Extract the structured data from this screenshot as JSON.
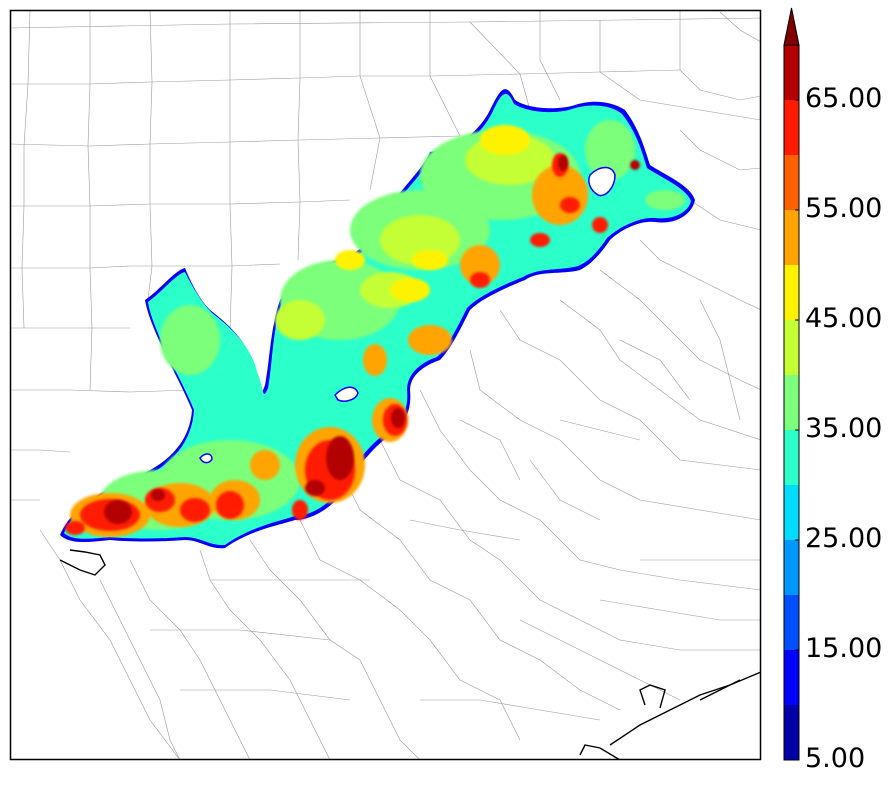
{
  "colorbar": {
    "tick_labels": [
      "5.00",
      "15.00",
      "25.00",
      "35.00",
      "45.00",
      "55.00",
      "65.00"
    ],
    "min": 5,
    "max": 70,
    "extend": "max",
    "bins": [
      {
        "from": 5,
        "to": 10,
        "color": "#0000a8"
      },
      {
        "from": 10,
        "to": 15,
        "color": "#0000ff"
      },
      {
        "from": 15,
        "to": 20,
        "color": "#0050ff"
      },
      {
        "from": 20,
        "to": 25,
        "color": "#0098ff"
      },
      {
        "from": 25,
        "to": 30,
        "color": "#00dcff"
      },
      {
        "from": 30,
        "to": 35,
        "color": "#2bffca"
      },
      {
        "from": 35,
        "to": 40,
        "color": "#7cff7a"
      },
      {
        "from": 40,
        "to": 45,
        "color": "#c4ff34"
      },
      {
        "from": 45,
        "to": 50,
        "color": "#fff200"
      },
      {
        "from": 50,
        "to": 55,
        "color": "#ffa400"
      },
      {
        "from": 55,
        "to": 60,
        "color": "#ff6000"
      },
      {
        "from": 60,
        "to": 65,
        "color": "#ff1a00"
      },
      {
        "from": 65,
        "to": 70,
        "color": "#b30000"
      }
    ],
    "extend_color": "#800000"
  },
  "map": {
    "background": "#ffffff",
    "county_line_color": "#9a9a9a",
    "coast_line_color": "#000000"
  }
}
